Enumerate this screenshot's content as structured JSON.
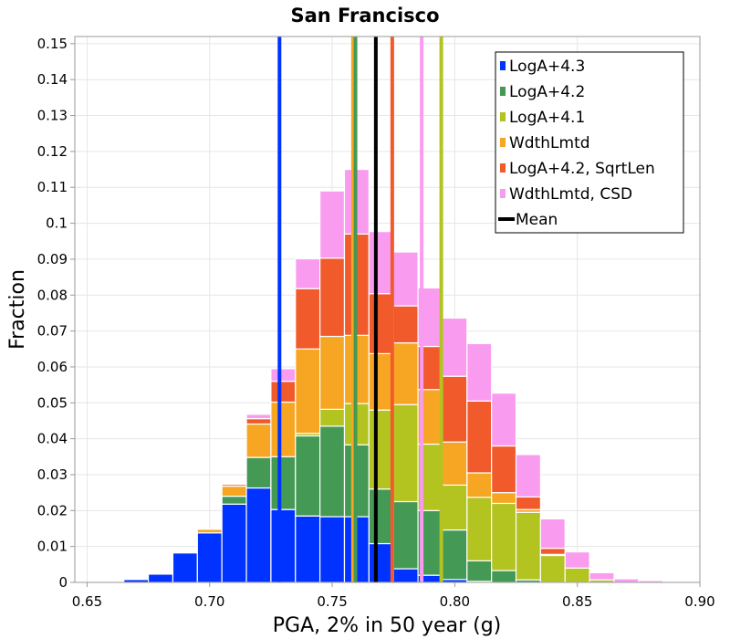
{
  "chart_data": {
    "type": "bar",
    "stacked": true,
    "title": "San Francisco",
    "xlabel": "PGA, 2% in 50 year (g)",
    "ylabel": "Fraction",
    "xlim": [
      0.645,
      0.9
    ],
    "ylim": [
      0,
      0.152
    ],
    "x_ticks": [
      "0.65",
      "0.70",
      "0.75",
      "0.80",
      "0.85",
      "0.90"
    ],
    "y_ticks": [
      "0",
      "0.01",
      "0.02",
      "0.03",
      "0.04",
      "0.05",
      "0.06",
      "0.07",
      "0.08",
      "0.09",
      "0.1",
      "0.11",
      "0.12",
      "0.13",
      "0.14",
      "0.15"
    ],
    "grid": true,
    "legend_position": "top-right",
    "bin_width": 0.01,
    "bin_starts": [
      0.645,
      0.655,
      0.665,
      0.675,
      0.685,
      0.695,
      0.705,
      0.715,
      0.725,
      0.735,
      0.745,
      0.755,
      0.765,
      0.775,
      0.785,
      0.795,
      0.805,
      0.815,
      0.825,
      0.835,
      0.845,
      0.855,
      0.865,
      0.875,
      0.885
    ],
    "series": [
      {
        "name": "LogA+4.3",
        "color": "#0033ff",
        "values": [
          0,
          0.0003,
          0.0008,
          0.0023,
          0.0082,
          0.0138,
          0.0218,
          0.0263,
          0.0203,
          0.0185,
          0.0183,
          0.0183,
          0.0108,
          0.0038,
          0.002,
          0.0008,
          0.0003,
          0,
          0,
          0,
          0,
          0,
          0,
          0,
          0
        ]
      },
      {
        "name": "LogA+4.2",
        "color": "#449955",
        "values": [
          0,
          0,
          0,
          0,
          0,
          0,
          0.0022,
          0.0085,
          0.0147,
          0.0223,
          0.0252,
          0.02,
          0.0152,
          0.0187,
          0.018,
          0.0138,
          0.0057,
          0.0033,
          0.0007,
          0,
          0,
          0,
          0,
          0,
          0
        ]
      },
      {
        "name": "LogA+4.1",
        "color": "#b3c320",
        "values": [
          0,
          0,
          0,
          0,
          0,
          0,
          0,
          0,
          0,
          0.0007,
          0.0047,
          0.0115,
          0.022,
          0.027,
          0.0185,
          0.0125,
          0.0177,
          0.0187,
          0.0188,
          0.0075,
          0.004,
          0.0007,
          0,
          0,
          0
        ]
      },
      {
        "name": "WdthLmtd",
        "color": "#f7a623",
        "values": [
          0,
          0,
          0,
          0,
          0,
          0.001,
          0.0028,
          0.0093,
          0.0152,
          0.0235,
          0.0203,
          0.019,
          0.0157,
          0.0172,
          0.0152,
          0.012,
          0.0068,
          0.003,
          0.0008,
          0.0003,
          0,
          0,
          0,
          0,
          0
        ]
      },
      {
        "name": "LogA+4.2, SqrtLen",
        "color": "#f15a2b",
        "values": [
          0,
          0,
          0,
          0,
          0,
          0,
          0.0005,
          0.0015,
          0.0058,
          0.0168,
          0.0218,
          0.0282,
          0.0167,
          0.0103,
          0.012,
          0.0183,
          0.02,
          0.013,
          0.0035,
          0.0017,
          0,
          0,
          0,
          0,
          0
        ]
      },
      {
        "name": "WdthLmtd, CSD",
        "color": "#f99cf0",
        "values": [
          0,
          0,
          0,
          0,
          0,
          0,
          0,
          0.0012,
          0.0035,
          0.0083,
          0.0187,
          0.018,
          0.0173,
          0.015,
          0.0163,
          0.0162,
          0.016,
          0.0147,
          0.0118,
          0.0082,
          0.0045,
          0.002,
          0.001,
          0.0005,
          0.0002
        ]
      }
    ],
    "mean_lines": [
      {
        "series": "LogA+4.3",
        "x": 0.7285,
        "color": "#0033ff"
      },
      {
        "series": "WdthLmtd",
        "x": 0.7585,
        "color": "#f7a623"
      },
      {
        "series": "LogA+4.2",
        "x": 0.7595,
        "color": "#449955"
      },
      {
        "series": "LogA+4.2, SqrtLen",
        "x": 0.7745,
        "color": "#f15a2b"
      },
      {
        "series": "WdthLmtd, CSD",
        "x": 0.7865,
        "color": "#f99cf0"
      },
      {
        "series": "LogA+4.1",
        "x": 0.7945,
        "color": "#b3c320"
      }
    ],
    "overall_mean": {
      "name": "Mean",
      "x": 0.7678,
      "color": "#000000"
    }
  }
}
